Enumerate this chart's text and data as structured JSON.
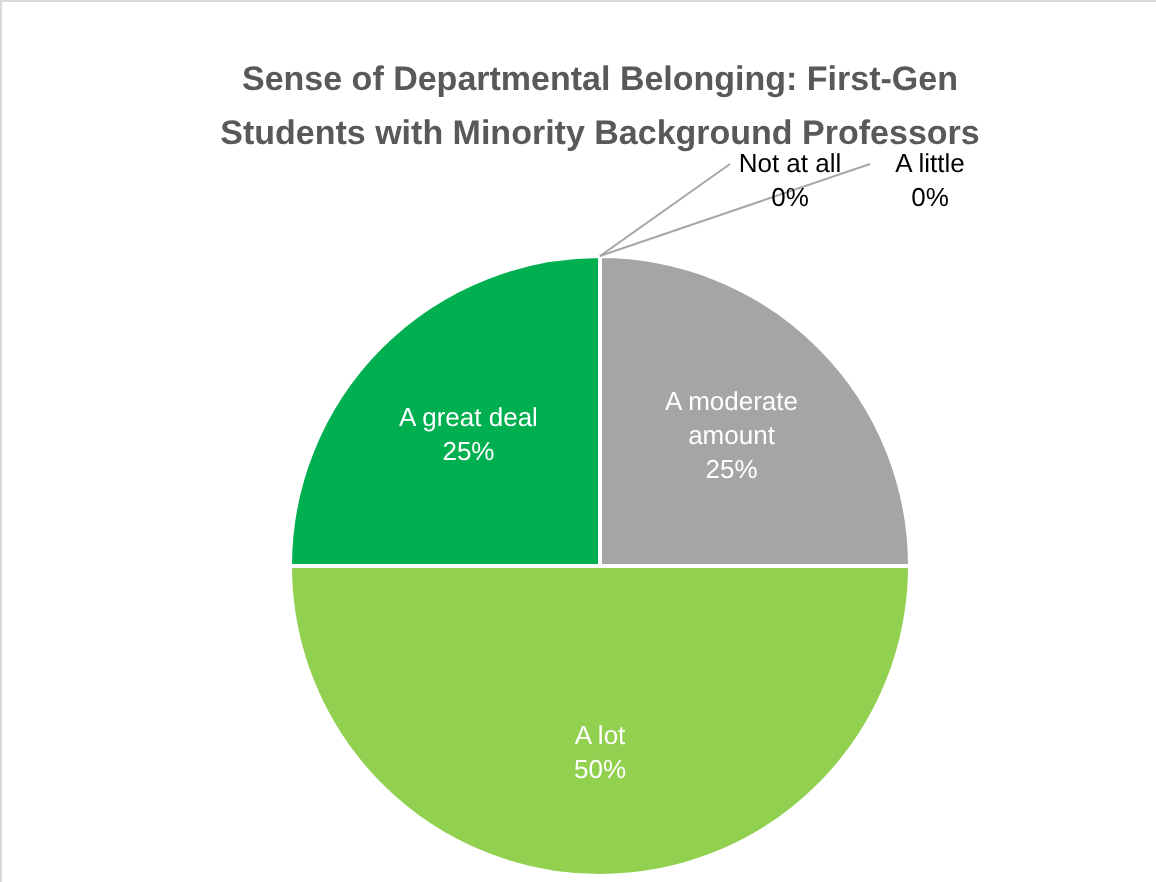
{
  "chart_data": {
    "type": "pie",
    "title": "Sense of Departmental Belonging: First-Gen Students with Minority Background Professors",
    "categories": [
      "Not at all",
      "A little",
      "A moderate amount",
      "A lot",
      "A great deal"
    ],
    "values": [
      0,
      0,
      25,
      50,
      25
    ],
    "value_labels": [
      "0%",
      "0%",
      "25%",
      "50%",
      "25%"
    ],
    "colors": [
      "#7f7f7f",
      "#bfbfbf",
      "#a5a5a5",
      "#92d050",
      "#00b050"
    ],
    "legend": false
  }
}
